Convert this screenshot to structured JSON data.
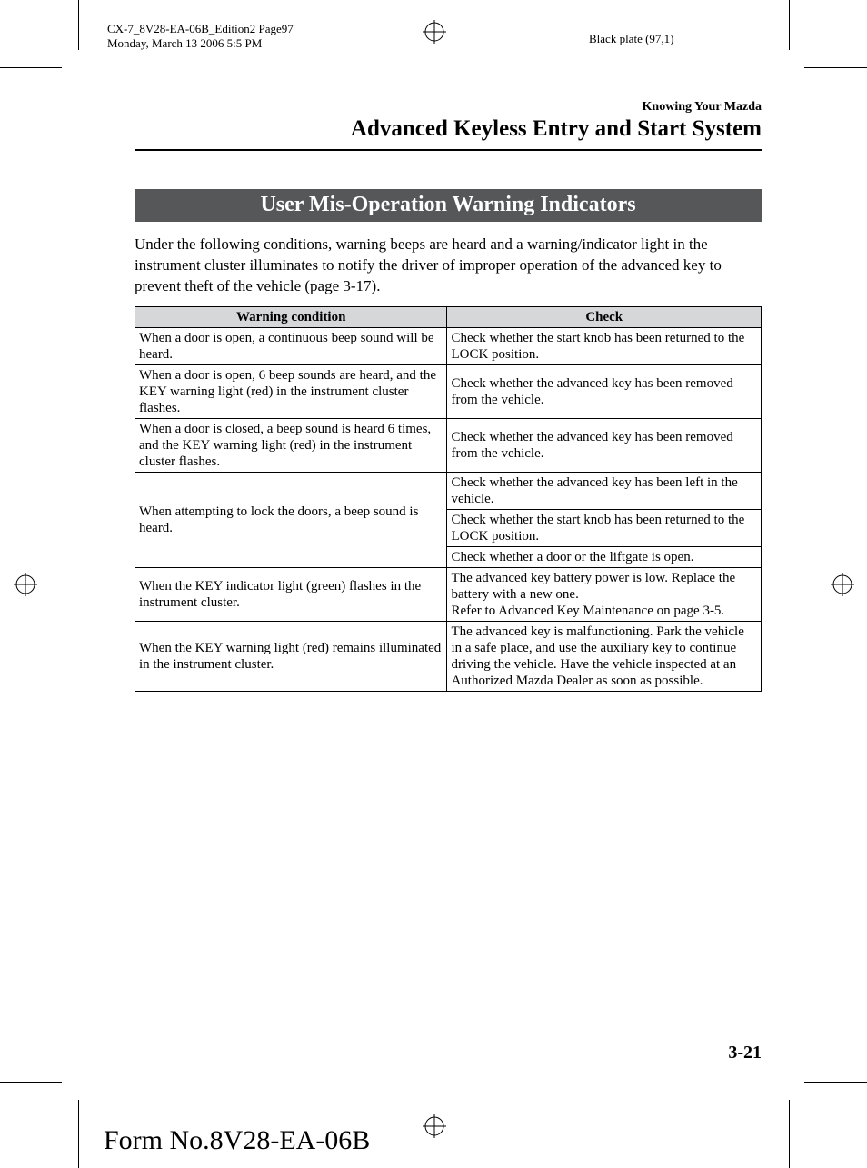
{
  "printMeta": {
    "line1": "CX-7_8V28-EA-06B_Edition2 Page97",
    "line2": "Monday, March 13 2006 5:5 PM",
    "plate": "Black plate (97,1)"
  },
  "header": {
    "superTitle": "Knowing Your Mazda",
    "title": "Advanced Keyless Entry and Start System"
  },
  "section": {
    "title": "User Mis-Operation Warning Indicators",
    "intro": "Under the following conditions, warning beeps are heard and a warning/indicator light in the instrument cluster illuminates to notify the driver of improper operation of the advanced key to prevent theft of the vehicle (page 3-17)."
  },
  "table": {
    "headers": [
      "Warning condition",
      "Check"
    ],
    "rows": [
      {
        "conditionRowspan": 1,
        "condition": "When a door is open, a continuous beep sound will be heard.",
        "check": "Check whether the start knob has been returned to the LOCK position."
      },
      {
        "conditionRowspan": 1,
        "condition": "When a door is open, 6 beep sounds are heard, and the KEY warning light (red) in the instrument cluster flashes.",
        "check": "Check whether the advanced key has been removed from the vehicle."
      },
      {
        "conditionRowspan": 1,
        "condition": "When a door is closed, a beep sound is heard 6 times, and the KEY warning light (red) in the instrument cluster flashes.",
        "check": "Check whether the advanced key has been removed from the vehicle."
      },
      {
        "conditionRowspan": 3,
        "condition": "When attempting to lock the doors, a beep sound is heard.",
        "check": "Check whether the advanced key has been left in the vehicle."
      },
      {
        "conditionRowspan": 0,
        "condition": "",
        "check": "Check whether the start knob has been returned to the LOCK position."
      },
      {
        "conditionRowspan": 0,
        "condition": "",
        "check": "Check whether a door or the liftgate is open."
      },
      {
        "conditionRowspan": 1,
        "condition": "When the KEY indicator light (green) flashes in the instrument cluster.",
        "check": "The advanced key battery power is low. Replace the battery with a new one.\nRefer to Advanced Key Maintenance on page 3-5."
      },
      {
        "conditionRowspan": 1,
        "condition": "When the KEY warning light (red) remains illuminated in the instrument cluster.",
        "check": "The advanced key is malfunctioning. Park the vehicle in a safe place, and use the auxiliary key to continue driving the vehicle. Have the vehicle inspected at an Authorized Mazda Dealer as soon as possible."
      }
    ]
  },
  "pageNumber": "3-21",
  "formNumber": "Form No.8V28-EA-06B",
  "colors": {
    "sectionTitleBg": "#555759",
    "tableHeaderBg": "#d6d7d8",
    "text": "#000000",
    "paper": "#ffffff"
  }
}
